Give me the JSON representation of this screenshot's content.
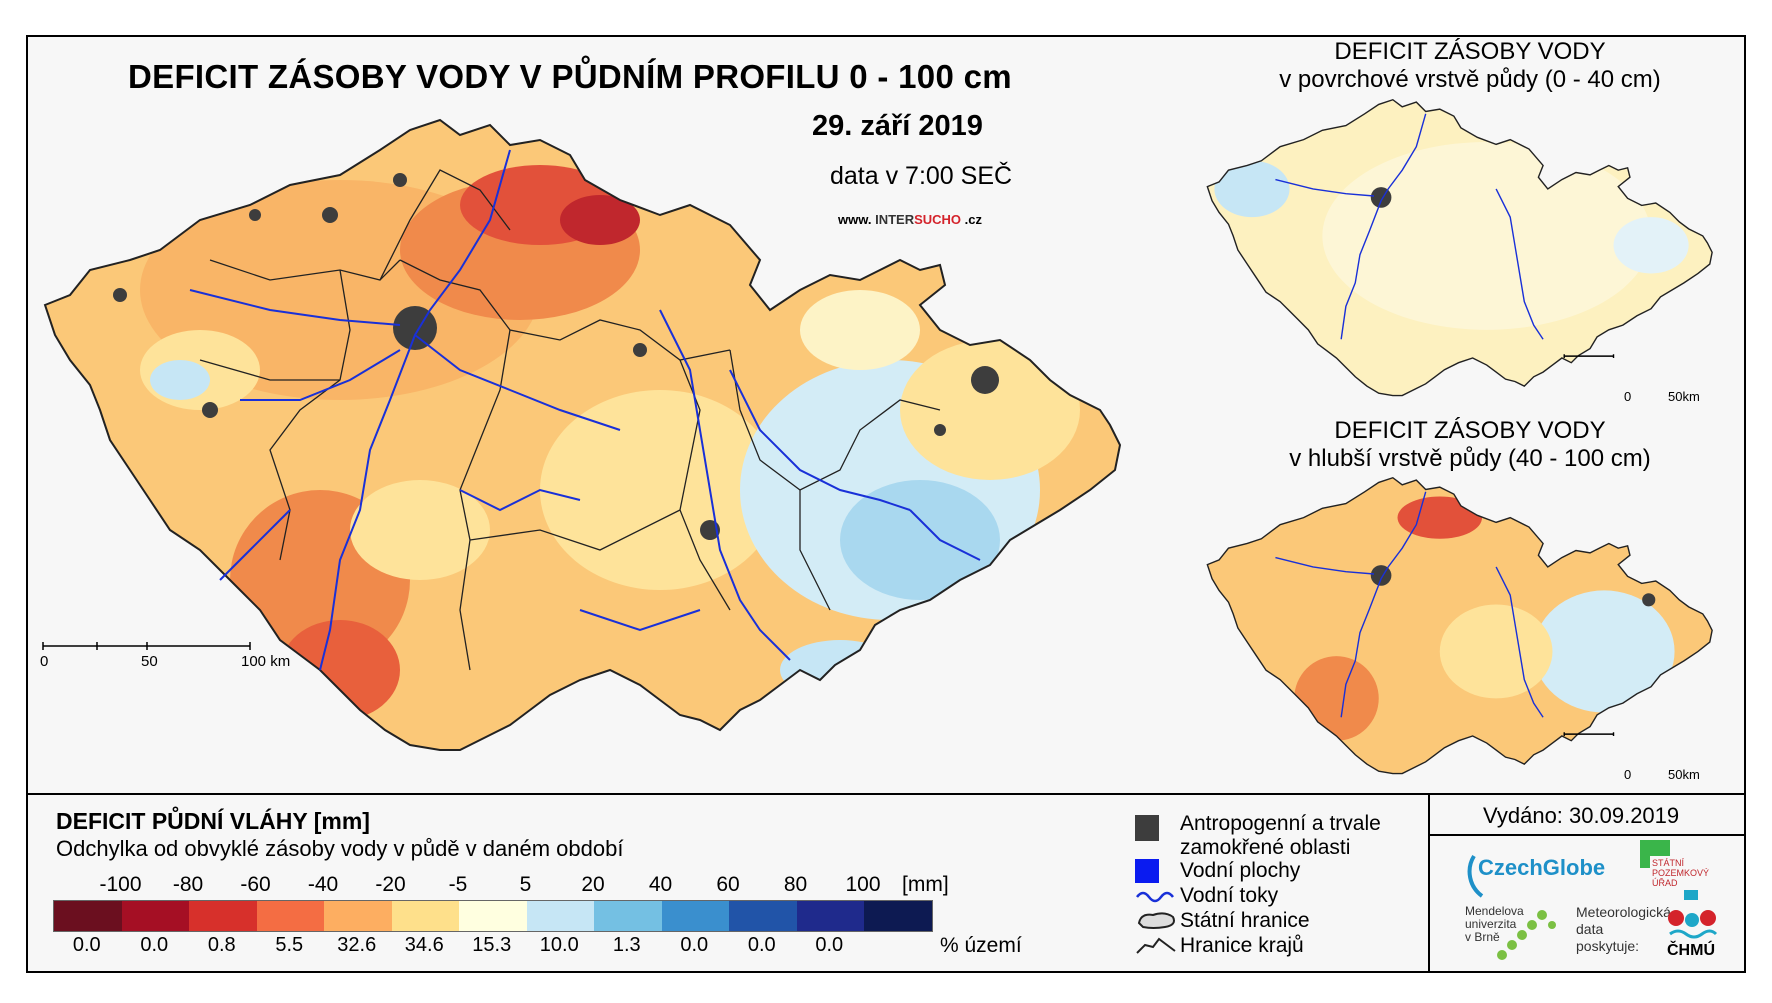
{
  "main": {
    "title": "DEFICIT ZÁSOBY VODY V PŮDNÍM PROFILU 0 - 100 cm",
    "date": "29. září 2019",
    "data_time": "data v 7:00 SEČ",
    "website_prefix": "www.",
    "website_name_a": "INTER",
    "website_name_b": "SUCHO",
    "website_suffix": ".cz",
    "scale_labels": [
      "0",
      "50",
      "100 km"
    ]
  },
  "inset_top": {
    "title_line1": "DEFICIT ZÁSOBY VODY",
    "title_line2": "v povrchové vrstvě půdy (0 - 40 cm)",
    "scale_labels": [
      "0",
      "50km"
    ]
  },
  "inset_bottom": {
    "title_line1": "DEFICIT ZÁSOBY VODY",
    "title_line2": "v hlubší vrstvě půdy (40 - 100 cm)",
    "scale_labels": [
      "0",
      "50km"
    ]
  },
  "legend": {
    "title": "DEFICIT PŮDNÍ VLÁHY [mm]",
    "subtitle": "Odchylka od obvyklé zásoby vody v půdě v daném období",
    "ticks": [
      "-100",
      "-80",
      "-60",
      "-40",
      "-20",
      "-5",
      "5",
      "20",
      "40",
      "60",
      "80",
      "100"
    ],
    "unit": "[mm]",
    "colors": [
      "#6b0f1f",
      "#a50f24",
      "#d7302b",
      "#f46d43",
      "#fdae61",
      "#fee08b",
      "#ffffe0",
      "#c6e6f5",
      "#74c0e3",
      "#3a8fce",
      "#2154a8",
      "#1f2a8c",
      "#0d1a52"
    ],
    "percentages": [
      "0.0",
      "0.0",
      "0.8",
      "5.5",
      "32.6",
      "34.6",
      "15.3",
      "10.0",
      "1.3",
      "0.0",
      "0.0",
      "0.0"
    ],
    "percent_label": "% území"
  },
  "symbols": {
    "anthropogenic_line1": "Antropogenní a trvale",
    "anthropogenic_line2": "zamokřené oblasti",
    "water_bodies": "Vodní plochy",
    "rivers": "Vodní toky",
    "state_border": "Státní hranice",
    "region_border": "Hranice krajů"
  },
  "footer": {
    "issued": "Vydáno: 30.09.2019",
    "czechglobe": "CzechGlobe",
    "szu_line1": "STÁTNÍ",
    "szu_line2": "POZEMKOVÝ",
    "szu_line3": "ÚŘAD",
    "mendel_line1": "Mendelova",
    "mendel_line2": "univerzita",
    "mendel_line3": "v Brně",
    "meteo_line1": "Meteorologická",
    "meteo_line2": "data",
    "meteo_line3": "poskytuje:",
    "chmu": "ČHMÚ"
  }
}
